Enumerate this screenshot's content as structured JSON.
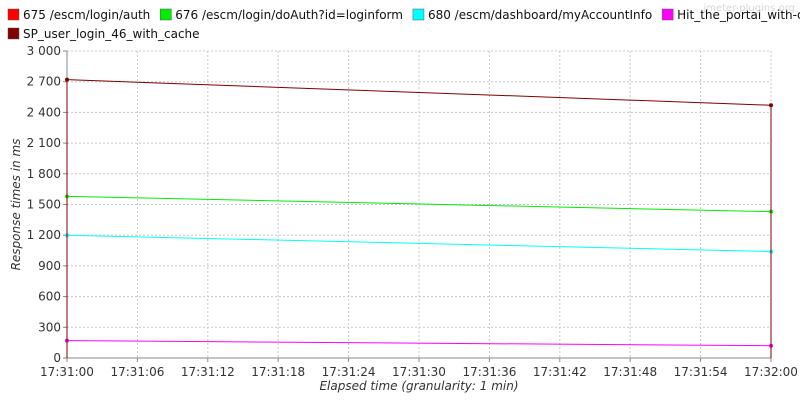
{
  "watermark": "jmeter-plugins.org",
  "chart_data": {
    "type": "line",
    "x": [
      "17:31:00",
      "17:32:00"
    ],
    "x_ticks": [
      "17:31:00",
      "17:31:06",
      "17:31:12",
      "17:31:18",
      "17:31:24",
      "17:31:30",
      "17:31:36",
      "17:31:42",
      "17:31:48",
      "17:31:54",
      "17:32:00"
    ],
    "y_ticks": [
      "0",
      "300",
      "600",
      "900",
      "1 200",
      "1 500",
      "1 800",
      "2 100",
      "2 400",
      "2 700",
      "3 000"
    ],
    "ylim": [
      0,
      3000
    ],
    "xlabel": "Elapsed time (granularity: 1 min)",
    "ylabel": "Response times in ms",
    "grid": true,
    "legend_position": "top",
    "series": [
      {
        "name": "675 /escm/login/auth",
        "color": "#ff0000",
        "values": [
          null,
          null
        ]
      },
      {
        "name": "676 /escm/login/doAuth?id=loginform",
        "color": "#00ee00",
        "values": [
          1580,
          1430
        ]
      },
      {
        "name": "680 /escm/dashboard/myAccountInfo",
        "color": "#00ffff",
        "values": [
          1200,
          1040
        ]
      },
      {
        "name": "Hit_the_portal_with-cache",
        "color": "#ff00ff",
        "values": [
          170,
          120
        ]
      },
      {
        "name": "SP_user_login_46_with_cache",
        "color": "#800000",
        "values": [
          2720,
          2470
        ]
      }
    ]
  }
}
